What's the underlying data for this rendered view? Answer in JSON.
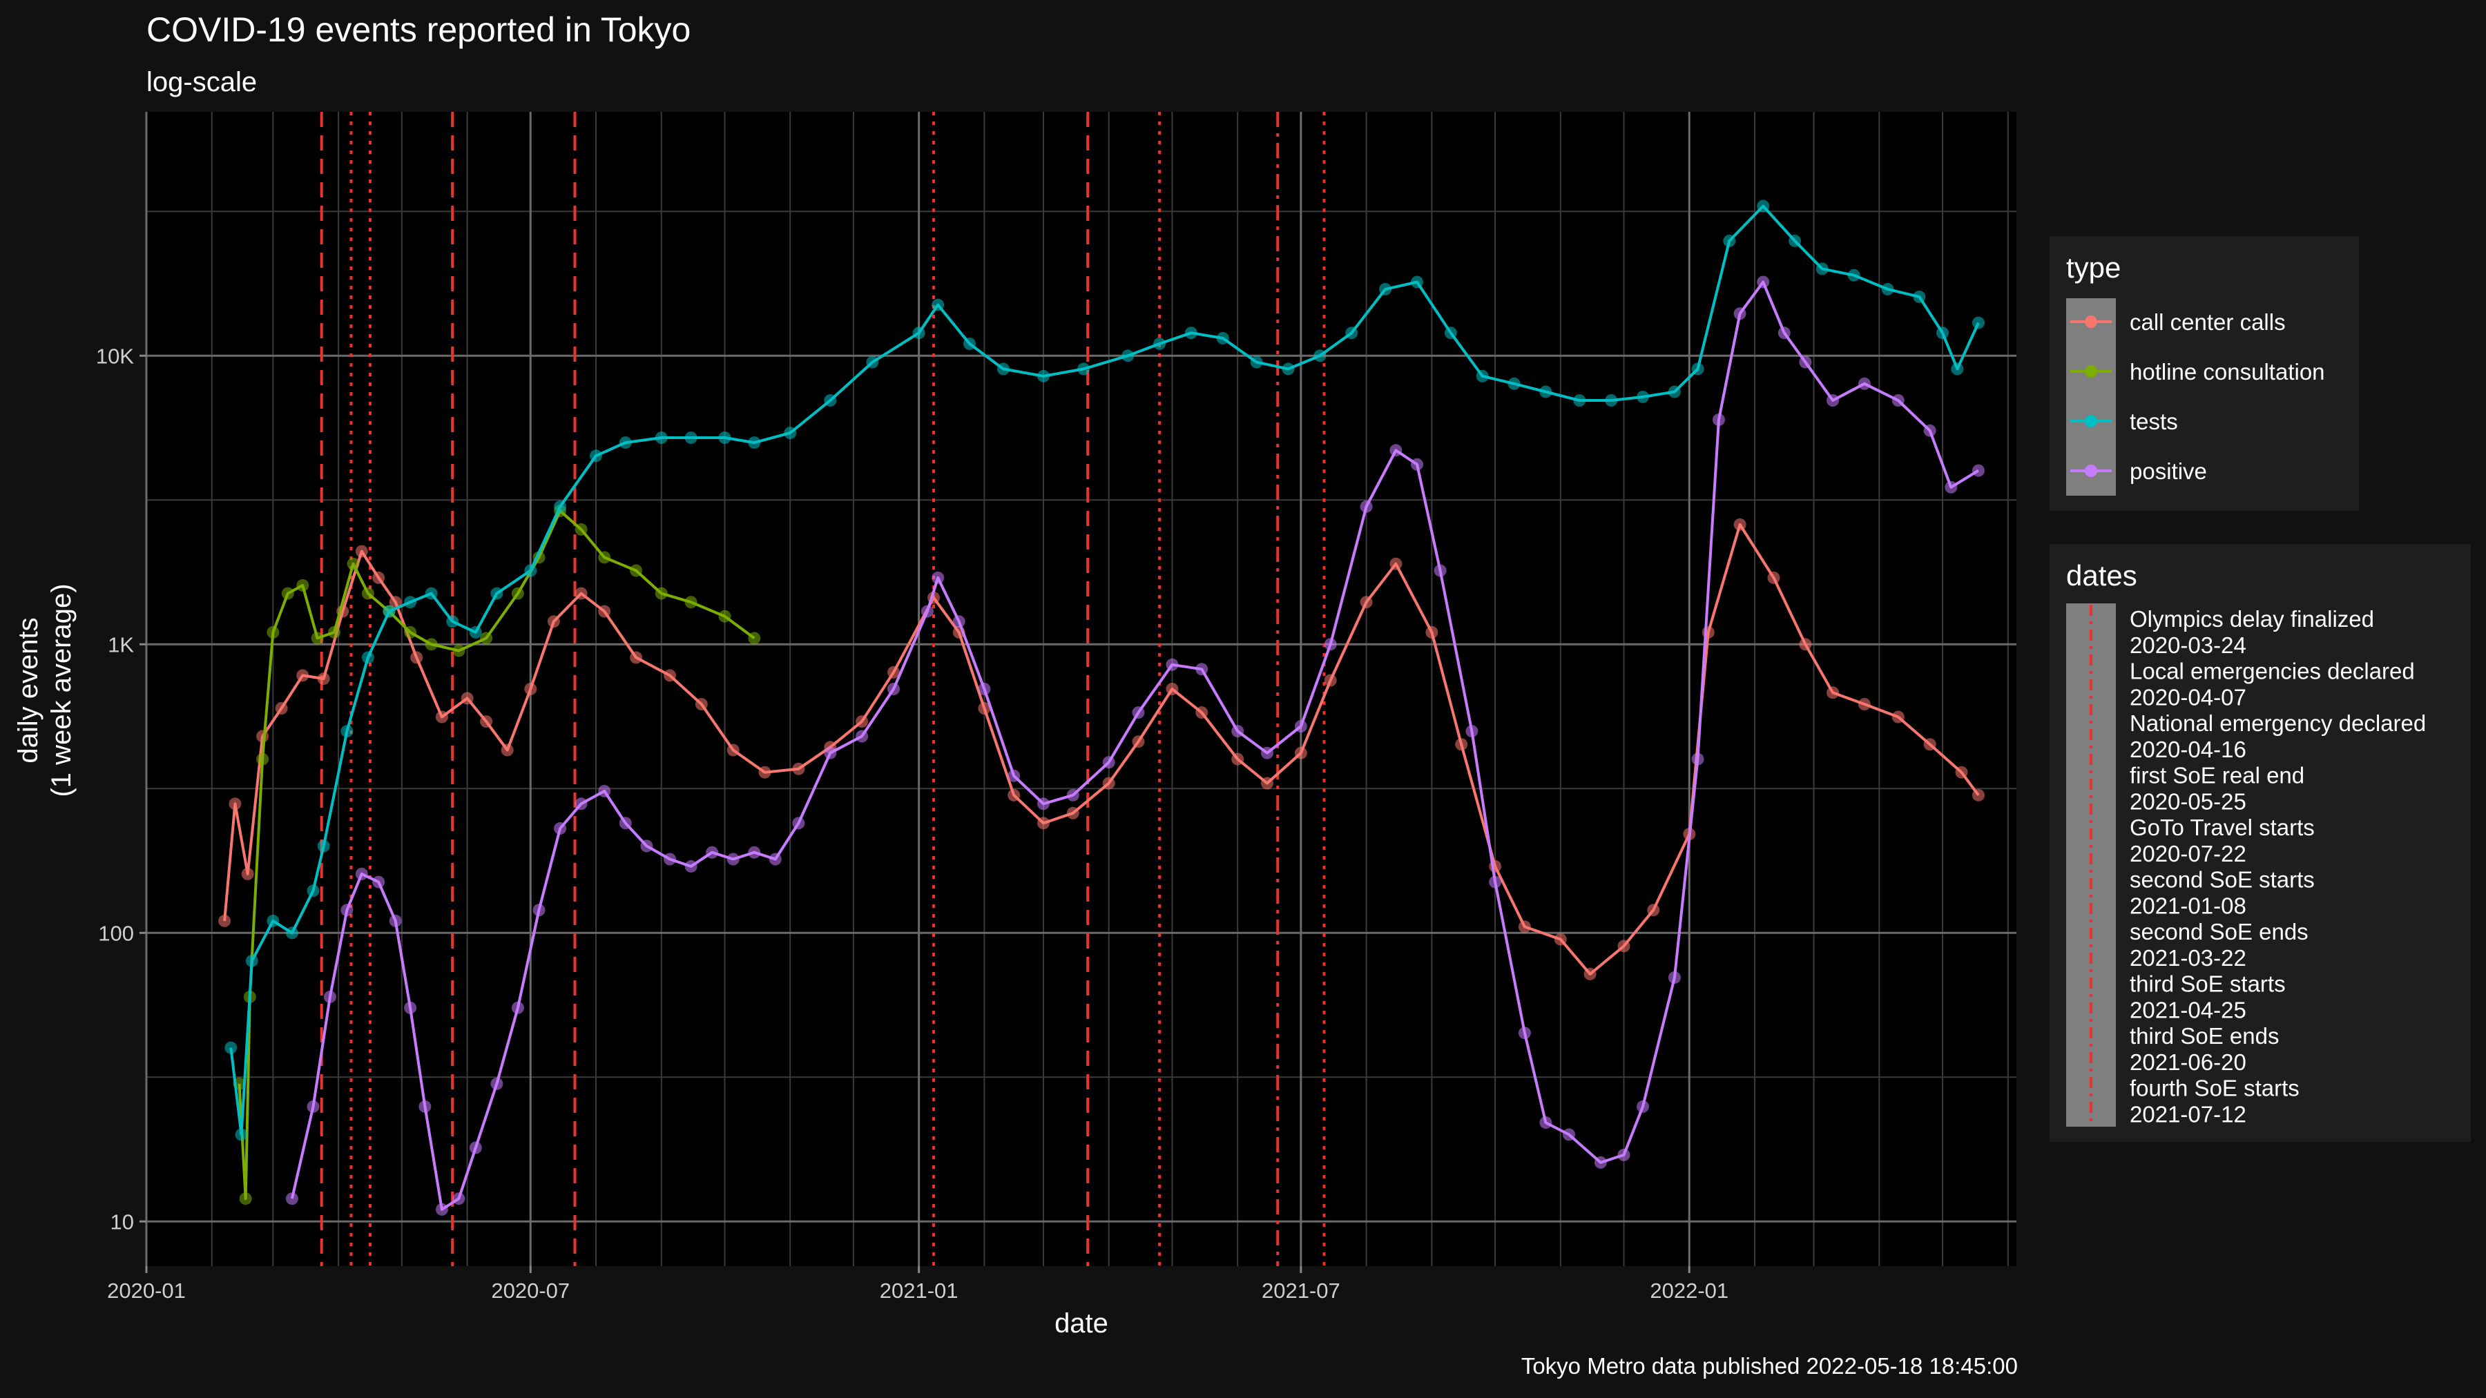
{
  "chart_data": {
    "type": "line",
    "title": "COVID-19 events reported in Tokyo",
    "subtitle": "log-scale",
    "xlabel": "date",
    "ylabel_line1": "daily events",
    "ylabel_line2": "(1 week average)",
    "caption": "Tokyo Metro data published 2022-05-18 18:45:00",
    "y_scale": "log10",
    "ylim": [
      7,
      70000
    ],
    "xlim": [
      "2020-01-01",
      "2022-06-05"
    ],
    "x_ticks": [
      {
        "date": "2020-01-01",
        "label": "2020-01"
      },
      {
        "date": "2020-07-01",
        "label": "2020-07"
      },
      {
        "date": "2021-01-01",
        "label": "2021-01"
      },
      {
        "date": "2021-07-01",
        "label": "2021-07"
      },
      {
        "date": "2022-01-01",
        "label": "2022-01"
      }
    ],
    "y_ticks": [
      {
        "value": 10,
        "label": "10"
      },
      {
        "value": 100,
        "label": "100"
      },
      {
        "value": 1000,
        "label": "1K"
      },
      {
        "value": 10000,
        "label": "10K"
      }
    ],
    "grid": true,
    "legend_position": "right",
    "type_legend_title": "type",
    "dates_legend_title": "dates",
    "series": [
      {
        "name": "call center calls",
        "color": "#f8766d",
        "points": [
          [
            "2020-02-07",
            110
          ],
          [
            "2020-02-12",
            280
          ],
          [
            "2020-02-18",
            160
          ],
          [
            "2020-02-25",
            480
          ],
          [
            "2020-03-05",
            600
          ],
          [
            "2020-03-15",
            780
          ],
          [
            "2020-03-25",
            760
          ],
          [
            "2020-04-03",
            1300
          ],
          [
            "2020-04-12",
            2100
          ],
          [
            "2020-04-20",
            1700
          ],
          [
            "2020-04-28",
            1400
          ],
          [
            "2020-05-08",
            900
          ],
          [
            "2020-05-20",
            560
          ],
          [
            "2020-06-01",
            650
          ],
          [
            "2020-06-10",
            540
          ],
          [
            "2020-06-20",
            430
          ],
          [
            "2020-07-01",
            700
          ],
          [
            "2020-07-12",
            1200
          ],
          [
            "2020-07-25",
            1500
          ],
          [
            "2020-08-05",
            1300
          ],
          [
            "2020-08-20",
            900
          ],
          [
            "2020-09-05",
            780
          ],
          [
            "2020-09-20",
            620
          ],
          [
            "2020-10-05",
            430
          ],
          [
            "2020-10-20",
            360
          ],
          [
            "2020-11-05",
            370
          ],
          [
            "2020-11-20",
            440
          ],
          [
            "2020-12-05",
            540
          ],
          [
            "2020-12-20",
            800
          ],
          [
            "2021-01-08",
            1450
          ],
          [
            "2021-01-20",
            1100
          ],
          [
            "2021-02-01",
            600
          ],
          [
            "2021-02-15",
            300
          ],
          [
            "2021-03-01",
            240
          ],
          [
            "2021-03-15",
            260
          ],
          [
            "2021-04-01",
            330
          ],
          [
            "2021-04-15",
            460
          ],
          [
            "2021-05-01",
            700
          ],
          [
            "2021-05-15",
            580
          ],
          [
            "2021-06-01",
            400
          ],
          [
            "2021-06-15",
            330
          ],
          [
            "2021-07-01",
            420
          ],
          [
            "2021-07-15",
            750
          ],
          [
            "2021-08-01",
            1400
          ],
          [
            "2021-08-15",
            1900
          ],
          [
            "2021-09-01",
            1100
          ],
          [
            "2021-09-15",
            450
          ],
          [
            "2021-10-01",
            170
          ],
          [
            "2021-10-15",
            105
          ],
          [
            "2021-11-01",
            95
          ],
          [
            "2021-11-15",
            72
          ],
          [
            "2021-12-01",
            90
          ],
          [
            "2021-12-15",
            120
          ],
          [
            "2022-01-01",
            220
          ],
          [
            "2022-01-10",
            1100
          ],
          [
            "2022-01-25",
            2600
          ],
          [
            "2022-02-10",
            1700
          ],
          [
            "2022-02-25",
            1000
          ],
          [
            "2022-03-10",
            680
          ],
          [
            "2022-03-25",
            620
          ],
          [
            "2022-04-10",
            560
          ],
          [
            "2022-04-25",
            450
          ],
          [
            "2022-05-10",
            360
          ],
          [
            "2022-05-18",
            300
          ]
        ]
      },
      {
        "name": "hotline consultation",
        "color": "#7cae00",
        "points": [
          [
            "2020-02-14",
            30
          ],
          [
            "2020-02-17",
            12
          ],
          [
            "2020-02-19",
            60
          ],
          [
            "2020-02-25",
            400
          ],
          [
            "2020-03-01",
            1100
          ],
          [
            "2020-03-08",
            1500
          ],
          [
            "2020-03-15",
            1600
          ],
          [
            "2020-03-22",
            1050
          ],
          [
            "2020-03-30",
            1100
          ],
          [
            "2020-04-08",
            1900
          ],
          [
            "2020-04-15",
            1500
          ],
          [
            "2020-04-25",
            1300
          ],
          [
            "2020-05-05",
            1100
          ],
          [
            "2020-05-15",
            1000
          ],
          [
            "2020-05-28",
            950
          ],
          [
            "2020-06-10",
            1050
          ],
          [
            "2020-06-25",
            1500
          ],
          [
            "2020-07-05",
            2000
          ],
          [
            "2020-07-15",
            2900
          ],
          [
            "2020-07-25",
            2500
          ],
          [
            "2020-08-05",
            2000
          ],
          [
            "2020-08-20",
            1800
          ],
          [
            "2020-09-01",
            1500
          ],
          [
            "2020-09-15",
            1400
          ],
          [
            "2020-10-01",
            1250
          ],
          [
            "2020-10-15",
            1050
          ]
        ]
      },
      {
        "name": "tests",
        "color": "#00bfc4",
        "points": [
          [
            "2020-02-10",
            40
          ],
          [
            "2020-02-15",
            20
          ],
          [
            "2020-02-20",
            80
          ],
          [
            "2020-03-01",
            110
          ],
          [
            "2020-03-10",
            100
          ],
          [
            "2020-03-20",
            140
          ],
          [
            "2020-03-25",
            200
          ],
          [
            "2020-04-05",
            500
          ],
          [
            "2020-04-15",
            900
          ],
          [
            "2020-04-25",
            1300
          ],
          [
            "2020-05-05",
            1400
          ],
          [
            "2020-05-15",
            1500
          ],
          [
            "2020-05-25",
            1200
          ],
          [
            "2020-06-05",
            1100
          ],
          [
            "2020-06-15",
            1500
          ],
          [
            "2020-07-01",
            1800
          ],
          [
            "2020-07-15",
            3000
          ],
          [
            "2020-08-01",
            4500
          ],
          [
            "2020-08-15",
            5000
          ],
          [
            "2020-09-01",
            5200
          ],
          [
            "2020-09-15",
            5200
          ],
          [
            "2020-10-01",
            5200
          ],
          [
            "2020-10-15",
            5000
          ],
          [
            "2020-11-01",
            5400
          ],
          [
            "2020-11-20",
            7000
          ],
          [
            "2020-12-10",
            9500
          ],
          [
            "2021-01-01",
            12000
          ],
          [
            "2021-01-10",
            15000
          ],
          [
            "2021-01-25",
            11000
          ],
          [
            "2021-02-10",
            9000
          ],
          [
            "2021-03-01",
            8500
          ],
          [
            "2021-03-20",
            9000
          ],
          [
            "2021-04-10",
            10000
          ],
          [
            "2021-04-25",
            11000
          ],
          [
            "2021-05-10",
            12000
          ],
          [
            "2021-05-25",
            11500
          ],
          [
            "2021-06-10",
            9500
          ],
          [
            "2021-06-25",
            9000
          ],
          [
            "2021-07-10",
            10000
          ],
          [
            "2021-07-25",
            12000
          ],
          [
            "2021-08-10",
            17000
          ],
          [
            "2021-08-25",
            18000
          ],
          [
            "2021-09-10",
            12000
          ],
          [
            "2021-09-25",
            8500
          ],
          [
            "2021-10-10",
            8000
          ],
          [
            "2021-10-25",
            7500
          ],
          [
            "2021-11-10",
            7000
          ],
          [
            "2021-11-25",
            7000
          ],
          [
            "2021-12-10",
            7200
          ],
          [
            "2021-12-25",
            7500
          ],
          [
            "2022-01-05",
            9000
          ],
          [
            "2022-01-20",
            25000
          ],
          [
            "2022-02-05",
            33000
          ],
          [
            "2022-02-20",
            25000
          ],
          [
            "2022-03-05",
            20000
          ],
          [
            "2022-03-20",
            19000
          ],
          [
            "2022-04-05",
            17000
          ],
          [
            "2022-04-20",
            16000
          ],
          [
            "2022-05-01",
            12000
          ],
          [
            "2022-05-08",
            9000
          ],
          [
            "2022-05-18",
            13000
          ]
        ]
      },
      {
        "name": "positive",
        "color": "#c77cff",
        "points": [
          [
            "2020-03-10",
            12
          ],
          [
            "2020-03-20",
            25
          ],
          [
            "2020-03-28",
            60
          ],
          [
            "2020-04-05",
            120
          ],
          [
            "2020-04-12",
            160
          ],
          [
            "2020-04-20",
            150
          ],
          [
            "2020-04-28",
            110
          ],
          [
            "2020-05-05",
            55
          ],
          [
            "2020-05-12",
            25
          ],
          [
            "2020-05-20",
            11
          ],
          [
            "2020-05-28",
            12
          ],
          [
            "2020-06-05",
            18
          ],
          [
            "2020-06-15",
            30
          ],
          [
            "2020-06-25",
            55
          ],
          [
            "2020-07-05",
            120
          ],
          [
            "2020-07-15",
            230
          ],
          [
            "2020-07-25",
            280
          ],
          [
            "2020-08-05",
            310
          ],
          [
            "2020-08-15",
            240
          ],
          [
            "2020-08-25",
            200
          ],
          [
            "2020-09-05",
            180
          ],
          [
            "2020-09-15",
            170
          ],
          [
            "2020-09-25",
            190
          ],
          [
            "2020-10-05",
            180
          ],
          [
            "2020-10-15",
            190
          ],
          [
            "2020-10-25",
            180
          ],
          [
            "2020-11-05",
            240
          ],
          [
            "2020-11-20",
            420
          ],
          [
            "2020-12-05",
            480
          ],
          [
            "2020-12-20",
            700
          ],
          [
            "2021-01-05",
            1300
          ],
          [
            "2021-01-10",
            1700
          ],
          [
            "2021-01-20",
            1200
          ],
          [
            "2021-02-01",
            700
          ],
          [
            "2021-02-15",
            350
          ],
          [
            "2021-03-01",
            280
          ],
          [
            "2021-03-15",
            300
          ],
          [
            "2021-04-01",
            390
          ],
          [
            "2021-04-15",
            580
          ],
          [
            "2021-05-01",
            850
          ],
          [
            "2021-05-15",
            820
          ],
          [
            "2021-06-01",
            500
          ],
          [
            "2021-06-15",
            420
          ],
          [
            "2021-07-01",
            520
          ],
          [
            "2021-07-15",
            1000
          ],
          [
            "2021-08-01",
            3000
          ],
          [
            "2021-08-15",
            4700
          ],
          [
            "2021-08-25",
            4200
          ],
          [
            "2021-09-05",
            1800
          ],
          [
            "2021-09-20",
            500
          ],
          [
            "2021-10-01",
            150
          ],
          [
            "2021-10-15",
            45
          ],
          [
            "2021-10-25",
            22
          ],
          [
            "2021-11-05",
            20
          ],
          [
            "2021-11-20",
            16
          ],
          [
            "2021-12-01",
            17
          ],
          [
            "2021-12-10",
            25
          ],
          [
            "2021-12-25",
            70
          ],
          [
            "2022-01-05",
            400
          ],
          [
            "2022-01-15",
            6000
          ],
          [
            "2022-01-25",
            14000
          ],
          [
            "2022-02-05",
            18000
          ],
          [
            "2022-02-15",
            12000
          ],
          [
            "2022-02-25",
            9500
          ],
          [
            "2022-03-10",
            7000
          ],
          [
            "2022-03-25",
            8000
          ],
          [
            "2022-04-10",
            7000
          ],
          [
            "2022-04-25",
            5500
          ],
          [
            "2022-05-05",
            3500
          ],
          [
            "2022-05-18",
            4000
          ]
        ]
      }
    ],
    "events": [
      {
        "label": "Olympics delay finalized",
        "date": "2020-03-24",
        "linetype": "dashed"
      },
      {
        "label": "Local emergencies declared",
        "date": "2020-04-07",
        "linetype": "dotted"
      },
      {
        "label": "National emergency declared",
        "date": "2020-04-16",
        "linetype": "dotted"
      },
      {
        "label": "first SoE real end",
        "date": "2020-05-25",
        "linetype": "dashed"
      },
      {
        "label": "GoTo Travel starts",
        "date": "2020-07-22",
        "linetype": "dashed"
      },
      {
        "label": "second SoE starts",
        "date": "2021-01-08",
        "linetype": "dotted"
      },
      {
        "label": "second SoE ends",
        "date": "2021-03-22",
        "linetype": "dashed"
      },
      {
        "label": "third SoE starts",
        "date": "2021-04-25",
        "linetype": "dotted"
      },
      {
        "label": "third SoE ends",
        "date": "2021-06-20",
        "linetype": "dashdot"
      },
      {
        "label": "fourth SoE starts",
        "date": "2021-07-12",
        "linetype": "dotted"
      }
    ]
  }
}
